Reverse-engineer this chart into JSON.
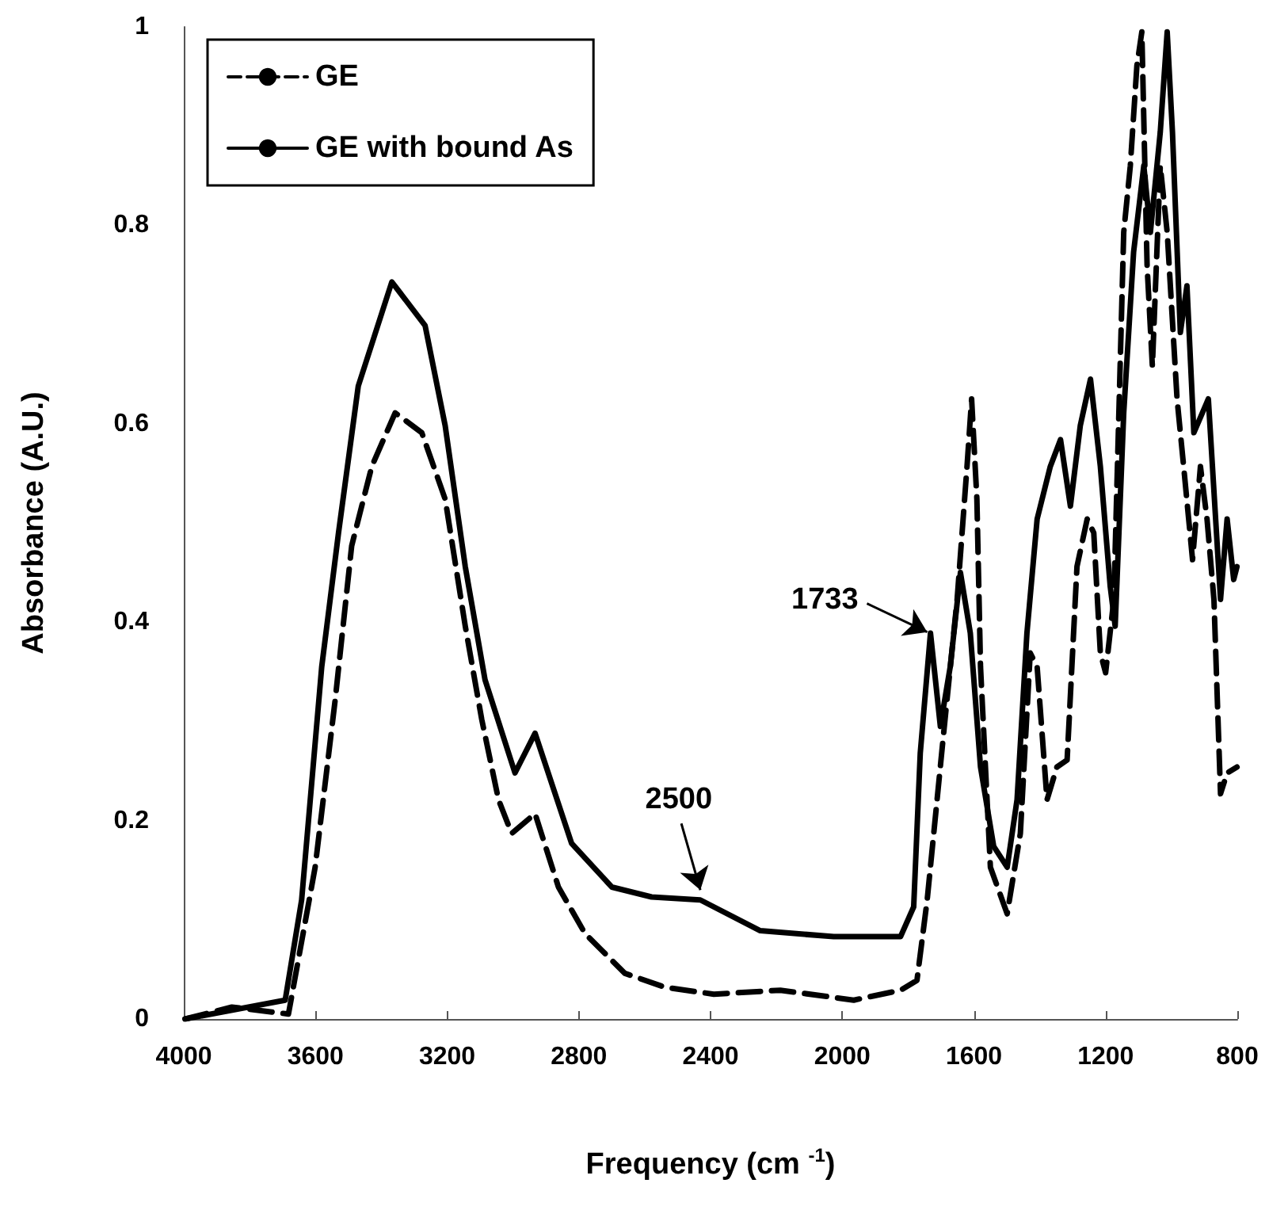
{
  "chart_data": {
    "type": "line",
    "xlabel": "Frequency (cm $^{-1}$)",
    "ylabel": "Absorbance (A.U.)",
    "xlim": [
      4000,
      800
    ],
    "xticks": [
      4000,
      3600,
      3200,
      2800,
      2400,
      2000,
      1600,
      1200,
      800
    ],
    "ylim": [
      0,
      1
    ],
    "yticks": [
      0,
      0.2,
      0.4,
      0.6,
      0.8,
      1
    ],
    "grid": false,
    "legend": "top left",
    "marker": "none",
    "annotations": [
      {
        "text": "2500",
        "x": 2431,
        "y": 0.13
      },
      {
        "text": "1733",
        "x": 1742,
        "y": 0.39
      }
    ],
    "series": [
      {
        "name": "GE",
        "color": "#000000",
        "line_style": "dashed",
        "x": [
          3996,
          3854,
          3682,
          3601,
          3540,
          3490,
          3429,
          3358,
          3277,
          3206,
          3145,
          3095,
          3044,
          3004,
          2933,
          2862,
          2781,
          2660,
          2538,
          2390,
          2188,
          1965,
          1823,
          1773,
          1742,
          1692,
          1651,
          1621,
          1607,
          1591,
          1580,
          1550,
          1499,
          1459,
          1429,
          1408,
          1378,
          1348,
          1317,
          1287,
          1256,
          1236,
          1216,
          1200,
          1175,
          1145,
          1125,
          1105,
          1090,
          1074,
          1058,
          1034,
          1013,
          983,
          963,
          936,
          912,
          892,
          871,
          851,
          831,
          801
        ],
        "values": [
          0,
          0.012,
          0.005,
          0.153,
          0.322,
          0.477,
          0.557,
          0.611,
          0.591,
          0.524,
          0.396,
          0.302,
          0.221,
          0.187,
          0.207,
          0.133,
          0.086,
          0.046,
          0.032,
          0.025,
          0.029,
          0.019,
          0.029,
          0.039,
          0.12,
          0.288,
          0.423,
          0.557,
          0.625,
          0.524,
          0.355,
          0.153,
          0.106,
          0.187,
          0.369,
          0.355,
          0.221,
          0.254,
          0.261,
          0.456,
          0.504,
          0.49,
          0.369,
          0.349,
          0.423,
          0.793,
          0.86,
          0.961,
          0.995,
          0.759,
          0.658,
          0.86,
          0.793,
          0.625,
          0.557,
          0.463,
          0.557,
          0.504,
          0.423,
          0.227,
          0.248,
          0.254
        ]
      },
      {
        "name": "GE with bound As",
        "color": "#000000",
        "line_style": "solid",
        "x": [
          3996,
          3692,
          3642,
          3581,
          3530,
          3470,
          3368,
          3267,
          3206,
          3145,
          3085,
          2994,
          2933,
          2822,
          2700,
          2579,
          2431,
          2249,
          2026,
          1823,
          1783,
          1763,
          1732,
          1702,
          1672,
          1641,
          1611,
          1580,
          1540,
          1499,
          1469,
          1439,
          1408,
          1368,
          1337,
          1307,
          1277,
          1246,
          1216,
          1186,
          1171,
          1145,
          1115,
          1084,
          1064,
          1034,
          1013,
          997,
          973,
          953,
          932,
          888,
          851,
          831,
          811,
          801
        ],
        "values": [
          0,
          0.019,
          0.12,
          0.355,
          0.49,
          0.638,
          0.743,
          0.699,
          0.598,
          0.456,
          0.342,
          0.248,
          0.288,
          0.177,
          0.133,
          0.123,
          0.12,
          0.089,
          0.083,
          0.083,
          0.113,
          0.268,
          0.389,
          0.295,
          0.355,
          0.45,
          0.389,
          0.254,
          0.174,
          0.153,
          0.221,
          0.389,
          0.504,
          0.557,
          0.584,
          0.517,
          0.598,
          0.645,
          0.557,
          0.436,
          0.396,
          0.611,
          0.773,
          0.86,
          0.793,
          0.894,
          0.995,
          0.894,
          0.692,
          0.739,
          0.591,
          0.625,
          0.423,
          0.504,
          0.443,
          0.456
        ]
      }
    ]
  }
}
